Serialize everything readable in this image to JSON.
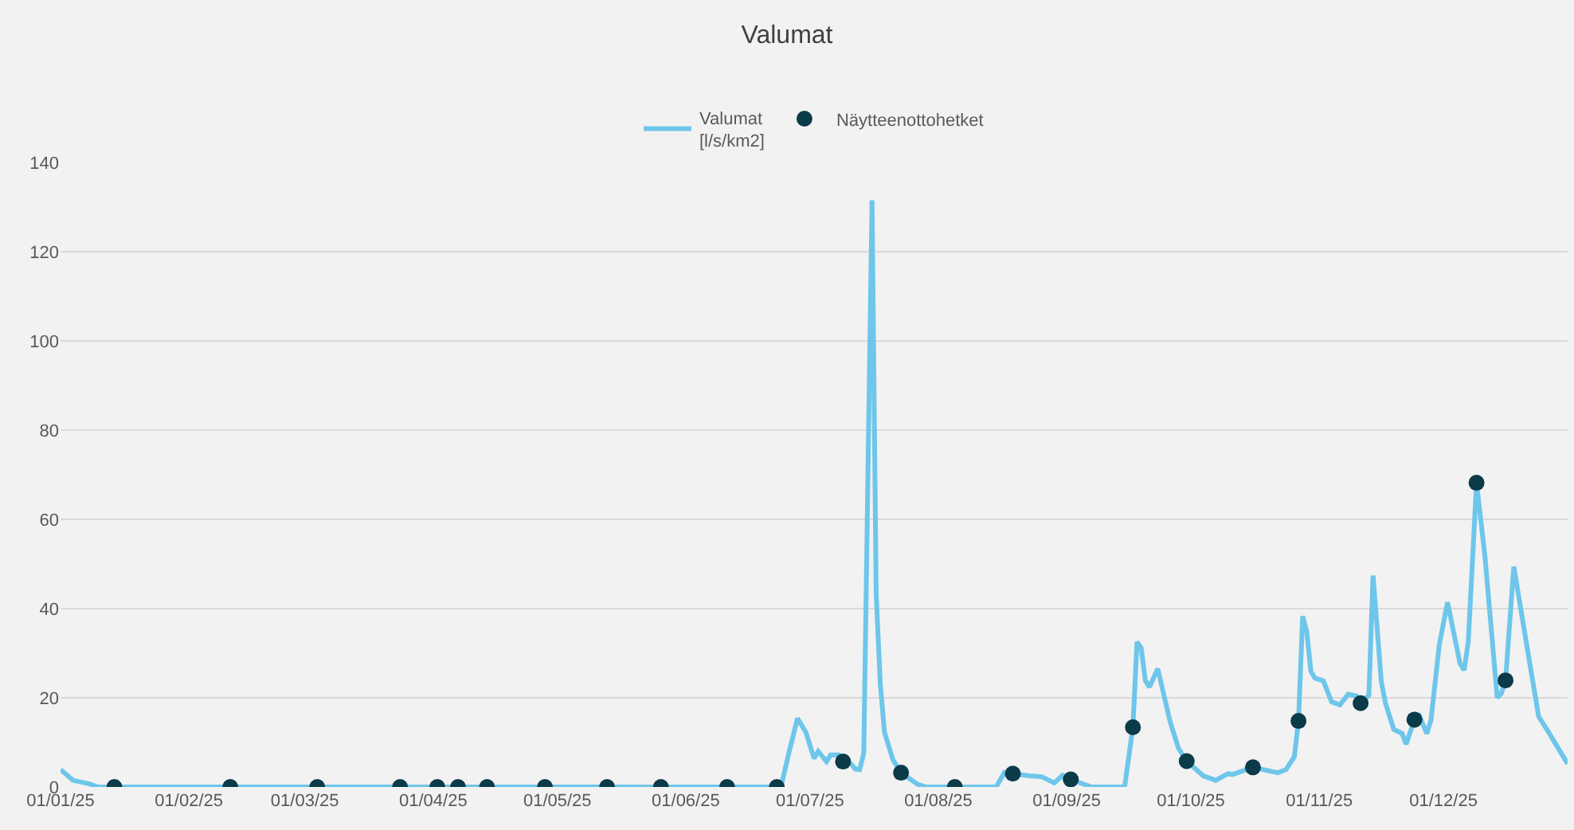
{
  "chart_data": {
    "type": "line",
    "title": "Valumat",
    "legend": "top",
    "grid": "y",
    "line_style": "solid",
    "xlim": [
      "2025-01-01",
      "2025-12-31"
    ],
    "xticks": [
      {
        "value": "2025-01-01",
        "label": "01/01/25"
      },
      {
        "value": "2025-02-01",
        "label": "01/02/25"
      },
      {
        "value": "2025-03-01",
        "label": "01/03/25"
      },
      {
        "value": "2025-04-01",
        "label": "01/04/25"
      },
      {
        "value": "2025-05-01",
        "label": "01/05/25"
      },
      {
        "value": "2025-06-01",
        "label": "01/06/25"
      },
      {
        "value": "2025-07-01",
        "label": "01/07/25"
      },
      {
        "value": "2025-08-01",
        "label": "01/08/25"
      },
      {
        "value": "2025-09-01",
        "label": "01/09/25"
      },
      {
        "value": "2025-10-01",
        "label": "01/10/25"
      },
      {
        "value": "2025-11-01",
        "label": "01/11/25"
      },
      {
        "value": "2025-12-01",
        "label": "01/12/25"
      }
    ],
    "ylim": [
      0,
      140
    ],
    "yticks": [
      0,
      20,
      40,
      60,
      80,
      100,
      120,
      140
    ],
    "series": [
      {
        "name": "Valumat\n[l/s/km2]",
        "marker": "none",
        "color": "#6ec6ea",
        "x": [
          "2025-01-01",
          "2025-01-04",
          "2025-01-08",
          "2025-01-10",
          "2025-06-24",
          "2025-06-26",
          "2025-06-28",
          "2025-06-30",
          "2025-07-02",
          "2025-07-03",
          "2025-07-05",
          "2025-07-06",
          "2025-07-08",
          "2025-07-09",
          "2025-07-11",
          "2025-07-12",
          "2025-07-13",
          "2025-07-14",
          "2025-07-16",
          "2025-07-17",
          "2025-07-18",
          "2025-07-19",
          "2025-07-21",
          "2025-07-23",
          "2025-07-27",
          "2025-07-29",
          "2025-08-15",
          "2025-08-17",
          "2025-08-19",
          "2025-08-23",
          "2025-08-26",
          "2025-08-29",
          "2025-08-31",
          "2025-09-02",
          "2025-09-07",
          "2025-09-15",
          "2025-09-17",
          "2025-09-18",
          "2025-09-19",
          "2025-09-20",
          "2025-09-21",
          "2025-09-23",
          "2025-09-26",
          "2025-09-28",
          "2025-09-30",
          "2025-10-04",
          "2025-10-07",
          "2025-10-10",
          "2025-10-11",
          "2025-10-16",
          "2025-10-22",
          "2025-10-24",
          "2025-10-26",
          "2025-10-27",
          "2025-10-28",
          "2025-10-29",
          "2025-10-30",
          "2025-10-31",
          "2025-11-02",
          "2025-11-04",
          "2025-11-06",
          "2025-11-08",
          "2025-11-10",
          "2025-11-11",
          "2025-11-13",
          "2025-11-14",
          "2025-11-16",
          "2025-11-17",
          "2025-11-19",
          "2025-11-21",
          "2025-11-22",
          "2025-11-24",
          "2025-11-25",
          "2025-11-27",
          "2025-11-28",
          "2025-11-30",
          "2025-12-02",
          "2025-12-05",
          "2025-12-06",
          "2025-12-07",
          "2025-12-09",
          "2025-12-11",
          "2025-12-14",
          "2025-12-15",
          "2025-12-16",
          "2025-12-18",
          "2025-12-21",
          "2025-12-24",
          "2025-12-26",
          "2025-12-28",
          "2025-12-31"
        ],
        "values": [
          3.9,
          1.5,
          0.7,
          0,
          0,
          8,
          15.4,
          12.3,
          6.4,
          8,
          5.7,
          7.2,
          7.2,
          5.7,
          5.1,
          4,
          3.9,
          7.6,
          131.5,
          43.2,
          23,
          12.3,
          6.2,
          3.2,
          0.6,
          0,
          0,
          3.3,
          3,
          2.5,
          2.3,
          0.9,
          2.6,
          1.7,
          0,
          0,
          13.4,
          32.5,
          31.2,
          23.9,
          22.4,
          26.5,
          14.6,
          8.7,
          5.8,
          2.5,
          1.5,
          3,
          2.8,
          4.4,
          3.2,
          3.9,
          6.8,
          14.8,
          38.3,
          34.8,
          25.9,
          24.4,
          23.8,
          19.1,
          18.4,
          20.8,
          20.4,
          18.8,
          20.6,
          47.4,
          23.6,
          18.8,
          12.9,
          12,
          9.6,
          15.1,
          16.4,
          12,
          15,
          31.9,
          41.4,
          27.7,
          26.2,
          32.5,
          68.2,
          52,
          20,
          21,
          23.9,
          49.4,
          32.5,
          15.8,
          12.9,
          9.8,
          5.2
        ]
      },
      {
        "name": "Näytteenottohetket",
        "type": "scatter",
        "marker": "circle",
        "color": "#0b3a48",
        "x": [
          "2025-01-14",
          "2025-02-11",
          "2025-03-04",
          "2025-03-24",
          "2025-04-02",
          "2025-04-07",
          "2025-04-14",
          "2025-04-28",
          "2025-05-13",
          "2025-05-26",
          "2025-06-11",
          "2025-06-23",
          "2025-07-09",
          "2025-07-23",
          "2025-08-05",
          "2025-08-19",
          "2025-09-02",
          "2025-09-17",
          "2025-09-30",
          "2025-10-16",
          "2025-10-27",
          "2025-11-11",
          "2025-11-24",
          "2025-12-09",
          "2025-12-16"
        ],
        "values": [
          0,
          0,
          0,
          0,
          0,
          0,
          0,
          0,
          0,
          0,
          0,
          0,
          5.7,
          3.2,
          0,
          3,
          1.7,
          13.4,
          5.8,
          4.4,
          14.8,
          18.8,
          15.1,
          68.2,
          23.9
        ]
      }
    ]
  }
}
